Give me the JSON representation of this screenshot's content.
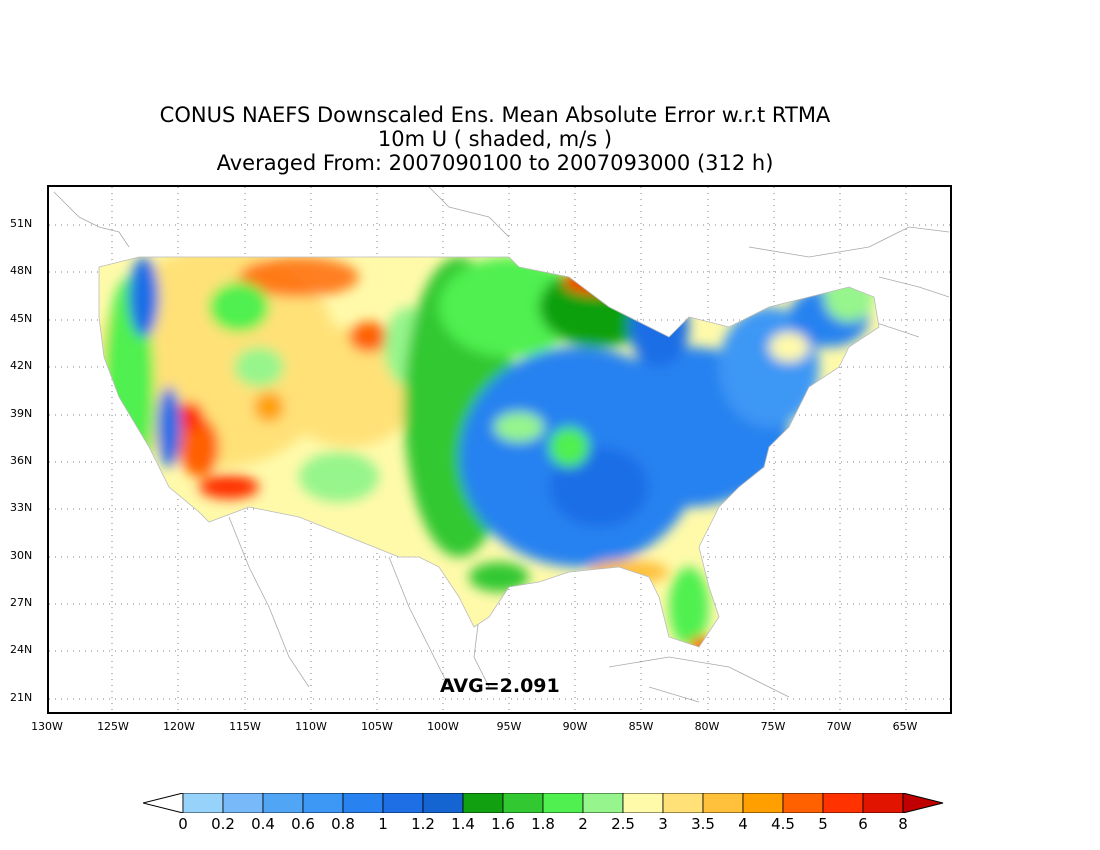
{
  "title": {
    "line1": "CONUS NAEFS Downscaled Ens. Mean Absolute Error w.r.t RTMA",
    "line2": "10m U ( shaded, m/s )",
    "line3": "Averaged From: 2007090100 to 2007093000 (312 h)"
  },
  "map": {
    "lat_labels": [
      "51N",
      "48N",
      "45N",
      "42N",
      "39N",
      "36N",
      "33N",
      "30N",
      "27N",
      "24N",
      "21N"
    ],
    "lon_labels": [
      "130W",
      "125W",
      "120W",
      "115W",
      "110W",
      "105W",
      "100W",
      "95W",
      "90W",
      "85W",
      "80W",
      "75W",
      "70W",
      "65W"
    ],
    "avg_label": "AVG=2.091",
    "region": "CONUS"
  },
  "colorbar": {
    "labels": [
      "0",
      "0.2",
      "0.4",
      "0.6",
      "0.8",
      "1",
      "1.2",
      "1.4",
      "1.6",
      "1.8",
      "2",
      "2.5",
      "3",
      "3.5",
      "4",
      "4.5",
      "5",
      "6",
      "8"
    ],
    "colors": [
      "#ffffff",
      "#96d2fa",
      "#78b9fa",
      "#50a5f5",
      "#3c97f5",
      "#2882f0",
      "#1e6ee6",
      "#1464d2",
      "#10a010",
      "#32c832",
      "#50f050",
      "#96f58c",
      "#fffaaa",
      "#ffe178",
      "#ffc03c",
      "#ffa000",
      "#ff6000",
      "#ff3200",
      "#e11400",
      "#c00000"
    ]
  }
}
